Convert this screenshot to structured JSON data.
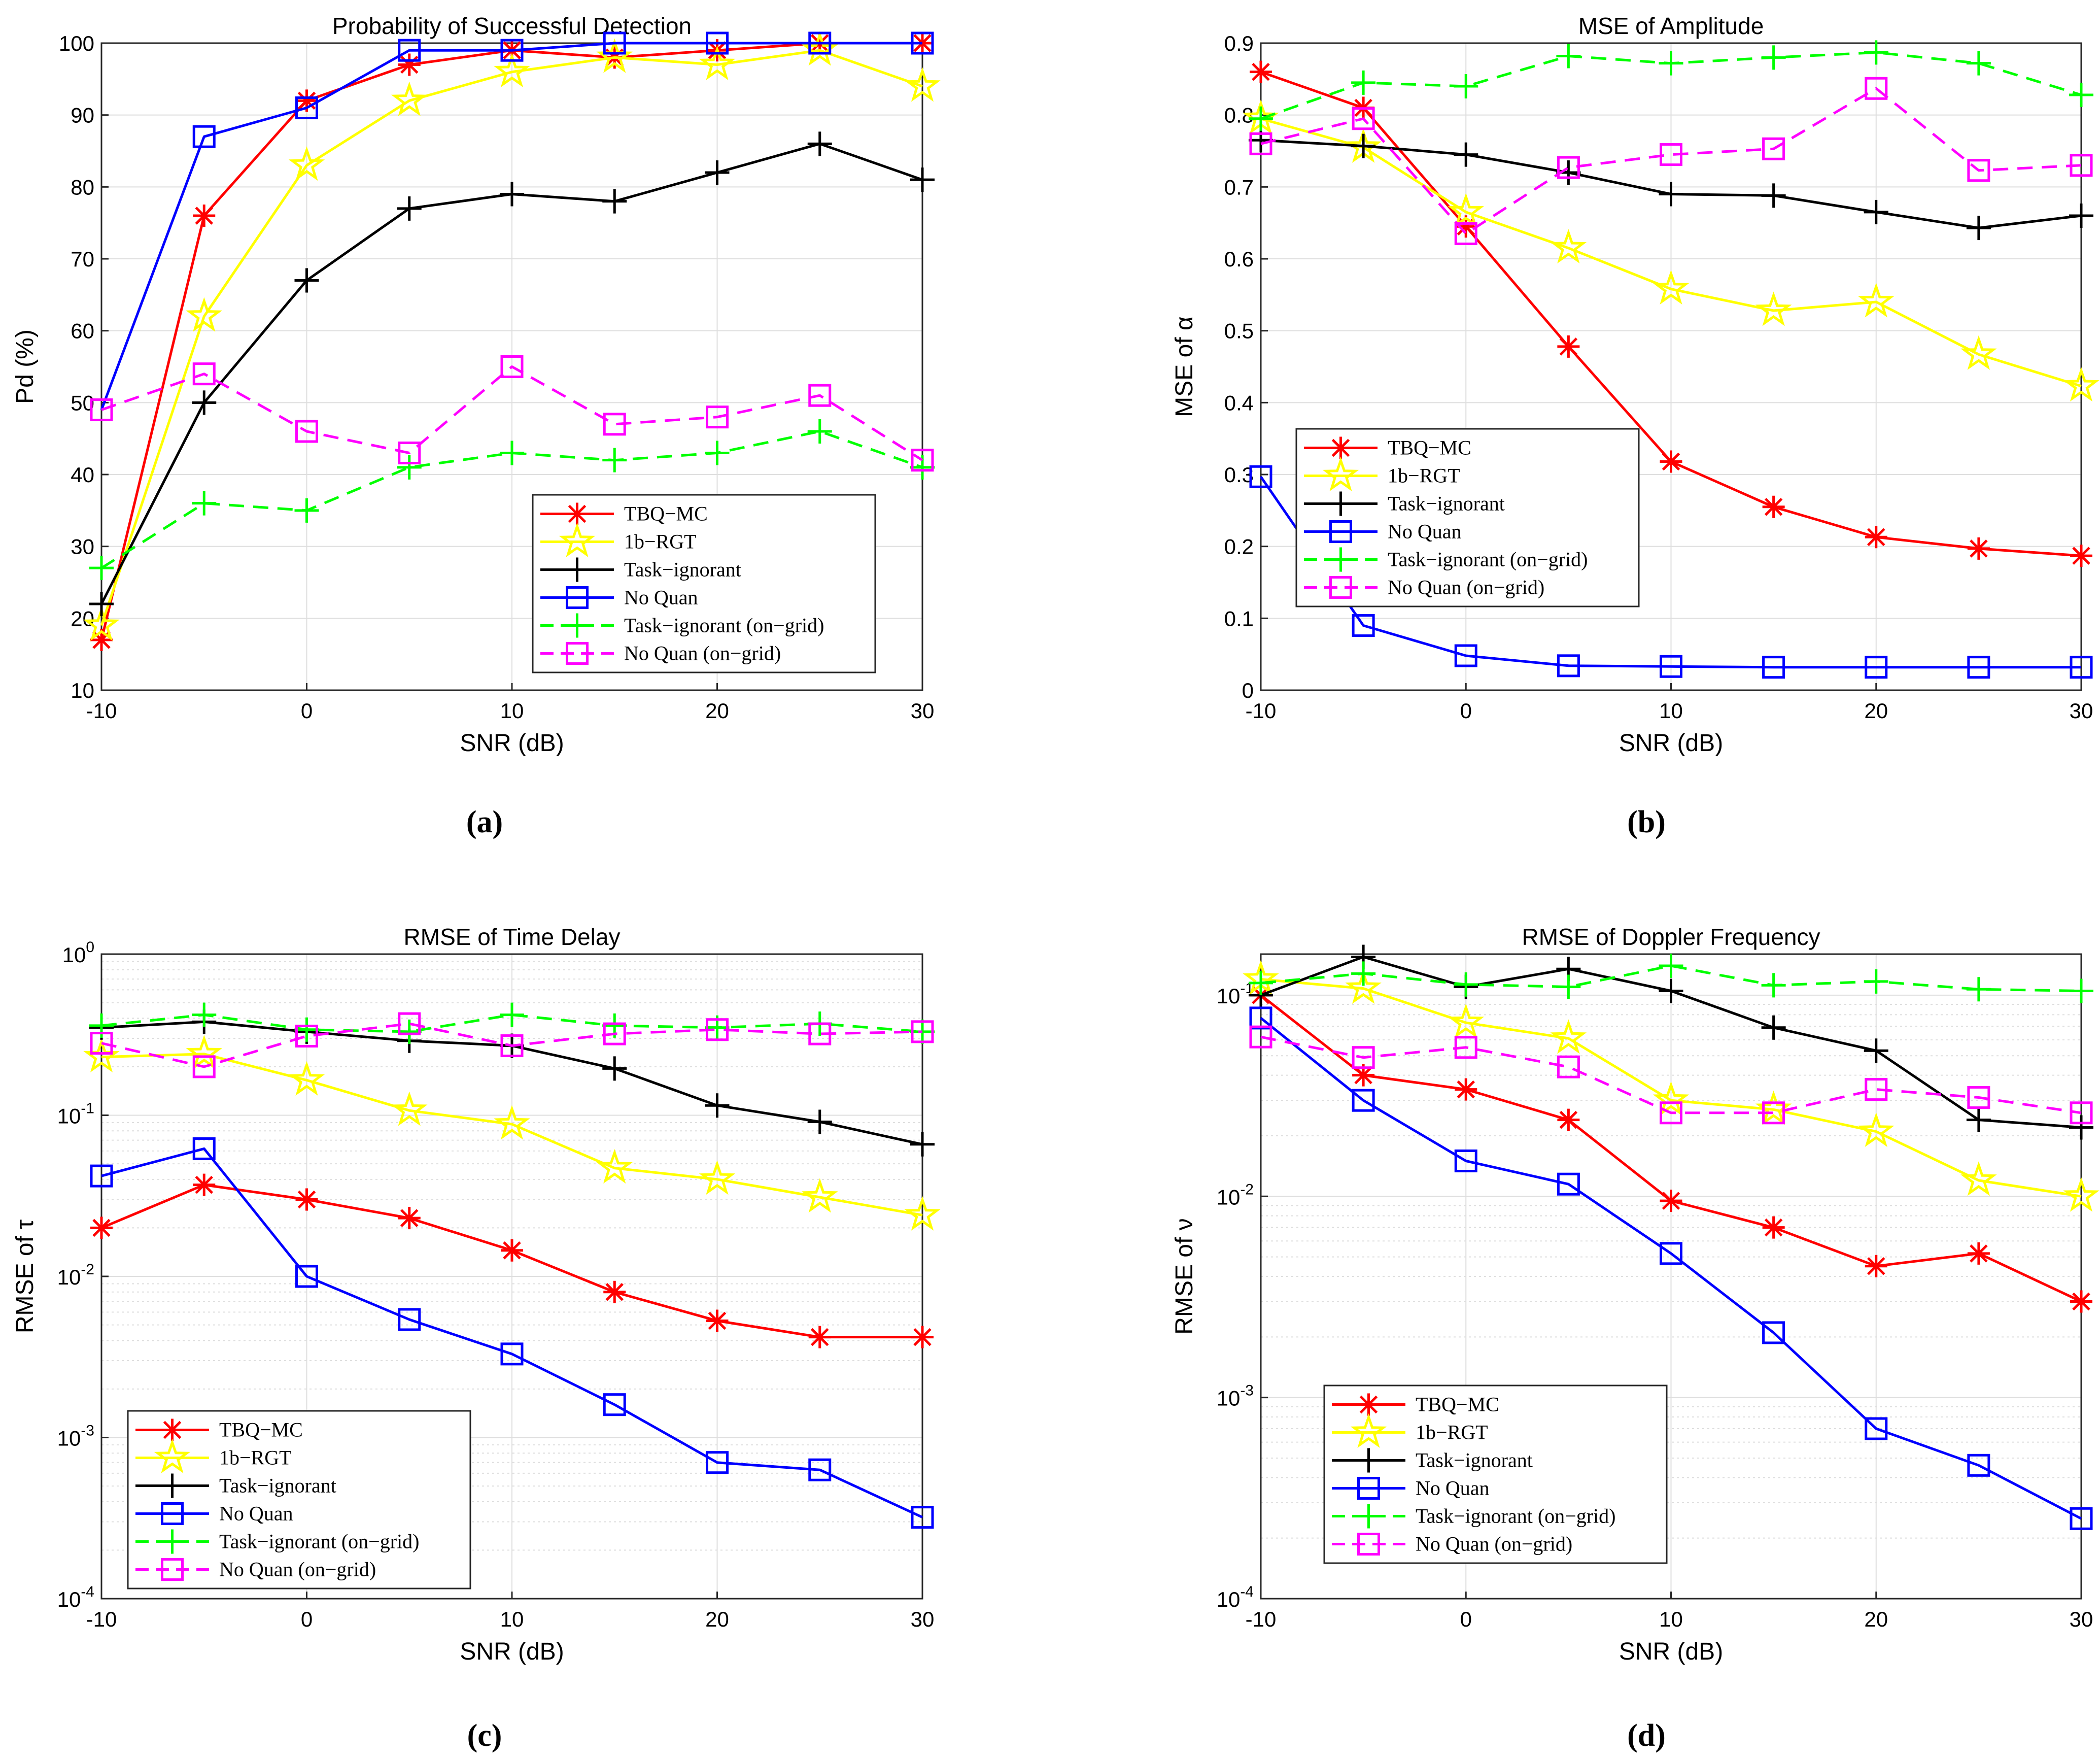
{
  "chart_data": [
    {
      "type": "line",
      "title": "Probability of Successful Detection",
      "xlabel": "SNR (dB)",
      "ylabel": "Pd (%)",
      "sublabel": "(a)",
      "yscale": "linear",
      "xlim": [
        -10,
        30
      ],
      "ylim": [
        10,
        100
      ],
      "xticks": [
        -10,
        0,
        10,
        20,
        30
      ],
      "xtick_labels": [
        "-10",
        "0",
        "10",
        "20",
        "30"
      ],
      "yticks": [
        10,
        20,
        30,
        40,
        50,
        60,
        70,
        80,
        90,
        100
      ],
      "ytick_labels": [
        "10",
        "20",
        "30",
        "40",
        "50",
        "60",
        "70",
        "80",
        "90",
        "100"
      ],
      "grid": true,
      "legend_position": "lower-right",
      "x": [
        -10,
        -5,
        0,
        5,
        10,
        15,
        20,
        25,
        30
      ],
      "series": [
        {
          "name": "TBQ−MC",
          "values": [
            17,
            76,
            92,
            97,
            99,
            98,
            99,
            100,
            100
          ]
        },
        {
          "name": "1b−RGT",
          "values": [
            19,
            62,
            83,
            92,
            96,
            98,
            97,
            99,
            94
          ]
        },
        {
          "name": "Task−ignorant",
          "values": [
            22,
            50,
            67,
            77,
            79,
            78,
            82,
            86,
            81
          ]
        },
        {
          "name": "No Quan",
          "values": [
            49,
            87,
            91,
            99,
            99,
            100,
            100,
            100,
            100
          ]
        },
        {
          "name": "Task−ignorant (on−grid)",
          "values": [
            27,
            36,
            35,
            41,
            43,
            42,
            43,
            46,
            41
          ]
        },
        {
          "name": "No Quan (on−grid)",
          "values": [
            49,
            54,
            46,
            43,
            55,
            47,
            48,
            51,
            42
          ]
        }
      ]
    },
    {
      "type": "line",
      "title": "MSE of Amplitude",
      "xlabel": "SNR (dB)",
      "ylabel": "MSE of α",
      "sublabel": "(b)",
      "yscale": "linear",
      "xlim": [
        -10,
        30
      ],
      "ylim": [
        0,
        0.9
      ],
      "xticks": [
        -10,
        0,
        10,
        20,
        30
      ],
      "xtick_labels": [
        "-10",
        "0",
        "10",
        "20",
        "30"
      ],
      "yticks": [
        0,
        0.1,
        0.2,
        0.3,
        0.4,
        0.5,
        0.6,
        0.7,
        0.8,
        0.9
      ],
      "ytick_labels": [
        "0",
        "0.1",
        "0.2",
        "0.3",
        "0.4",
        "0.5",
        "0.6",
        "0.7",
        "0.8",
        "0.9"
      ],
      "grid": true,
      "legend_position": "lower-left",
      "x": [
        -10,
        -5,
        0,
        5,
        10,
        15,
        20,
        25,
        30
      ],
      "series": [
        {
          "name": "TBQ−MC",
          "values": [
            0.86,
            0.81,
            0.645,
            0.478,
            0.318,
            0.255,
            0.213,
            0.197,
            0.187
          ]
        },
        {
          "name": "1b−RGT",
          "values": [
            0.795,
            0.755,
            0.665,
            0.615,
            0.558,
            0.528,
            0.54,
            0.467,
            0.423
          ]
        },
        {
          "name": "Task−ignorant",
          "values": [
            0.765,
            0.757,
            0.745,
            0.72,
            0.69,
            0.688,
            0.665,
            0.643,
            0.66
          ]
        },
        {
          "name": "No Quan",
          "values": [
            0.297,
            0.09,
            0.048,
            0.034,
            0.033,
            0.032,
            0.032,
            0.032,
            0.032
          ]
        },
        {
          "name": "Task−ignorant (on−grid)",
          "values": [
            0.795,
            0.845,
            0.84,
            0.882,
            0.872,
            0.88,
            0.887,
            0.872,
            0.828
          ]
        },
        {
          "name": "No Quan (on−grid)",
          "values": [
            0.76,
            0.795,
            0.635,
            0.727,
            0.745,
            0.753,
            0.837,
            0.723,
            0.73
          ]
        }
      ]
    },
    {
      "type": "line",
      "title": "RMSE of Time Delay",
      "xlabel": "SNR (dB)",
      "ylabel": "RMSE of τ",
      "sublabel": "(c)",
      "yscale": "log",
      "xlim": [
        -10,
        30
      ],
      "ylim": [
        0.0001,
        1
      ],
      "xticks": [
        -10,
        0,
        10,
        20,
        30
      ],
      "xtick_labels": [
        "-10",
        "0",
        "10",
        "20",
        "30"
      ],
      "yticks": [
        0.0001,
        0.001,
        0.01,
        0.1,
        1
      ],
      "ytick_labels": [
        {
          "base": "10",
          "exp": "-4"
        },
        {
          "base": "10",
          "exp": "-3"
        },
        {
          "base": "10",
          "exp": "-2"
        },
        {
          "base": "10",
          "exp": "-1"
        },
        {
          "base": "10",
          "exp": "0"
        }
      ],
      "grid": true,
      "legend_position": "lower-left",
      "x": [
        -10,
        -5,
        0,
        5,
        10,
        15,
        20,
        25,
        30
      ],
      "series": [
        {
          "name": "TBQ−MC",
          "values": [
            0.02,
            0.037,
            0.03,
            0.023,
            0.0145,
            0.008,
            0.0053,
            0.0042,
            0.0042
          ]
        },
        {
          "name": "1b−RGT",
          "values": [
            0.23,
            0.24,
            0.165,
            0.107,
            0.088,
            0.047,
            0.04,
            0.031,
            0.024
          ]
        },
        {
          "name": "Task−ignorant",
          "values": [
            0.35,
            0.38,
            0.33,
            0.29,
            0.27,
            0.195,
            0.115,
            0.091,
            0.066
          ]
        },
        {
          "name": "No Quan",
          "values": [
            0.042,
            0.062,
            0.01,
            0.0054,
            0.0033,
            0.0016,
            0.0007,
            0.00063,
            0.00032
          ]
        },
        {
          "name": "Task−ignorant (on−grid)",
          "values": [
            0.36,
            0.42,
            0.34,
            0.33,
            0.42,
            0.36,
            0.35,
            0.37,
            0.33
          ]
        },
        {
          "name": "No Quan (on−grid)",
          "values": [
            0.28,
            0.2,
            0.31,
            0.37,
            0.27,
            0.32,
            0.34,
            0.32,
            0.33
          ]
        }
      ]
    },
    {
      "type": "line",
      "title": "RMSE of Doppler Frequency",
      "xlabel": "SNR (dB)",
      "ylabel": "RMSE of ν",
      "sublabel": "(d)",
      "yscale": "log",
      "xlim": [
        -10,
        30
      ],
      "ylim": [
        0.0001,
        0.16
      ],
      "xticks": [
        -10,
        0,
        10,
        20,
        30
      ],
      "xtick_labels": [
        "-10",
        "0",
        "10",
        "20",
        "30"
      ],
      "yticks": [
        0.0001,
        0.001,
        0.01,
        0.1
      ],
      "ytick_labels": [
        {
          "base": "10",
          "exp": "-4"
        },
        {
          "base": "10",
          "exp": "-3"
        },
        {
          "base": "10",
          "exp": "-2"
        },
        {
          "base": "10",
          "exp": "-1"
        }
      ],
      "grid": true,
      "legend_position": "lower-left",
      "x": [
        -10,
        -5,
        0,
        5,
        10,
        15,
        20,
        25,
        30
      ],
      "series": [
        {
          "name": "TBQ−MC",
          "values": [
            0.1,
            0.04,
            0.034,
            0.024,
            0.0095,
            0.007,
            0.0045,
            0.0052,
            0.003
          ]
        },
        {
          "name": "1b−RGT",
          "values": [
            0.12,
            0.108,
            0.073,
            0.061,
            0.03,
            0.027,
            0.021,
            0.012,
            0.01
          ]
        },
        {
          "name": "Task−ignorant",
          "values": [
            0.1,
            0.155,
            0.11,
            0.135,
            0.105,
            0.069,
            0.053,
            0.024,
            0.022
          ]
        },
        {
          "name": "No Quan",
          "values": [
            0.077,
            0.03,
            0.015,
            0.0115,
            0.0052,
            0.0021,
            0.0007,
            0.00046,
            0.00025
          ]
        },
        {
          "name": "Task−ignorant (on−grid)",
          "values": [
            0.115,
            0.128,
            0.113,
            0.11,
            0.14,
            0.112,
            0.117,
            0.107,
            0.105
          ]
        },
        {
          "name": "No Quan (on−grid)",
          "values": [
            0.062,
            0.049,
            0.055,
            0.044,
            0.026,
            0.026,
            0.034,
            0.031,
            0.026
          ]
        }
      ]
    }
  ],
  "styles": [
    {
      "name": "TBQ−MC",
      "color": "#ff0000",
      "dash": "solid",
      "marker": "asterisk"
    },
    {
      "name": "1b−RGT",
      "color": "#ffff00",
      "dash": "solid",
      "marker": "star"
    },
    {
      "name": "Task−ignorant",
      "color": "#000000",
      "dash": "solid",
      "marker": "plus"
    },
    {
      "name": "No Quan",
      "color": "#0000ff",
      "dash": "solid",
      "marker": "square"
    },
    {
      "name": "Task−ignorant (on−grid)",
      "color": "#00ff00",
      "dash": "dashed",
      "marker": "plus"
    },
    {
      "name": "No Quan (on−grid)",
      "color": "#ff00ff",
      "dash": "dashed",
      "marker": "square"
    }
  ],
  "colors": {
    "grid": "#dedede",
    "axis": "#262626",
    "background": "#ffffff"
  }
}
